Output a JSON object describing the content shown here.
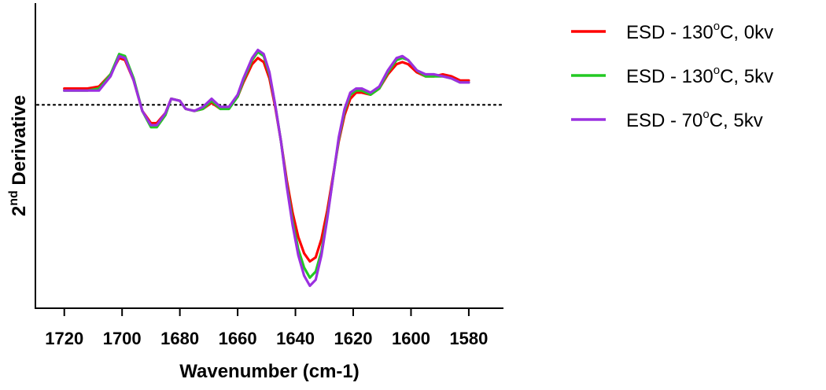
{
  "chart_data": {
    "type": "line",
    "title": "",
    "xlabel": "Wavenumber (cm-1)",
    "ylabel": {
      "base": "2",
      "sup": "nd",
      "rest": " Derivative"
    },
    "x_reversed": true,
    "xlim": [
      1730,
      1568
    ],
    "ylim": [
      -1.0,
      0.5
    ],
    "x_ticks": [
      1720,
      1700,
      1680,
      1660,
      1640,
      1620,
      1600,
      1580
    ],
    "y_ticks_shown": false,
    "baseline_y": 0,
    "grid": false,
    "legend_position": "right",
    "series": [
      {
        "legend": {
          "prefix": "ESD - 130",
          "sup": "o",
          "suffix": "C, 0kv"
        },
        "color": "#ff0000",
        "x": [
          1720,
          1716,
          1712,
          1708,
          1704,
          1701,
          1699,
          1696,
          1693,
          1690,
          1688,
          1685,
          1683,
          1680,
          1678,
          1675,
          1672,
          1669,
          1666,
          1663,
          1660,
          1658,
          1655,
          1653,
          1651,
          1649,
          1647,
          1645,
          1643,
          1641,
          1639,
          1637,
          1635,
          1633,
          1631,
          1629,
          1627,
          1625,
          1623,
          1621,
          1619,
          1617,
          1614,
          1611,
          1608,
          1605,
          1603,
          1601,
          1598,
          1595,
          1592,
          1589,
          1586,
          1583,
          1580
        ],
        "y": [
          0.08,
          0.08,
          0.08,
          0.09,
          0.15,
          0.23,
          0.22,
          0.12,
          -0.03,
          -0.09,
          -0.09,
          -0.04,
          0.03,
          0.02,
          -0.02,
          -0.03,
          -0.02,
          0.01,
          -0.02,
          -0.01,
          0.04,
          0.11,
          0.2,
          0.23,
          0.21,
          0.13,
          -0.01,
          -0.18,
          -0.37,
          -0.53,
          -0.65,
          -0.73,
          -0.77,
          -0.75,
          -0.66,
          -0.52,
          -0.35,
          -0.18,
          -0.05,
          0.03,
          0.06,
          0.06,
          0.05,
          0.08,
          0.15,
          0.2,
          0.21,
          0.2,
          0.16,
          0.14,
          0.14,
          0.15,
          0.14,
          0.12,
          0.12
        ]
      },
      {
        "legend": {
          "prefix": "ESD - 130",
          "sup": "o",
          "suffix": "C, 5kv"
        },
        "color": "#22c922",
        "x": [
          1720,
          1716,
          1712,
          1708,
          1704,
          1701,
          1699,
          1696,
          1693,
          1690,
          1688,
          1685,
          1683,
          1680,
          1678,
          1675,
          1672,
          1669,
          1666,
          1663,
          1660,
          1658,
          1655,
          1653,
          1651,
          1649,
          1647,
          1645,
          1643,
          1641,
          1639,
          1637,
          1635,
          1633,
          1631,
          1629,
          1627,
          1625,
          1623,
          1621,
          1619,
          1617,
          1614,
          1611,
          1608,
          1605,
          1603,
          1601,
          1598,
          1595,
          1592,
          1589,
          1586,
          1583,
          1580
        ],
        "y": [
          0.07,
          0.07,
          0.07,
          0.08,
          0.15,
          0.25,
          0.24,
          0.13,
          -0.03,
          -0.11,
          -0.11,
          -0.05,
          0.03,
          0.02,
          -0.02,
          -0.03,
          -0.02,
          0.02,
          -0.02,
          -0.02,
          0.04,
          0.12,
          0.22,
          0.26,
          0.24,
          0.15,
          0.0,
          -0.18,
          -0.39,
          -0.57,
          -0.71,
          -0.8,
          -0.85,
          -0.82,
          -0.72,
          -0.55,
          -0.36,
          -0.17,
          -0.03,
          0.05,
          0.07,
          0.07,
          0.05,
          0.08,
          0.16,
          0.22,
          0.23,
          0.22,
          0.17,
          0.14,
          0.14,
          0.14,
          0.13,
          0.11,
          0.11
        ]
      },
      {
        "legend": {
          "prefix": "ESD - 70",
          "sup": "o",
          "suffix": "C, 5kv"
        },
        "color": "#9b30e0",
        "x": [
          1720,
          1716,
          1712,
          1708,
          1704,
          1701,
          1699,
          1696,
          1693,
          1690,
          1688,
          1685,
          1683,
          1680,
          1678,
          1675,
          1672,
          1669,
          1666,
          1663,
          1660,
          1658,
          1655,
          1653,
          1651,
          1649,
          1647,
          1645,
          1643,
          1641,
          1639,
          1637,
          1635,
          1633,
          1631,
          1629,
          1627,
          1625,
          1623,
          1621,
          1619,
          1617,
          1614,
          1611,
          1608,
          1605,
          1603,
          1601,
          1598,
          1595,
          1592,
          1589,
          1586,
          1583,
          1580
        ],
        "y": [
          0.07,
          0.07,
          0.07,
          0.07,
          0.14,
          0.24,
          0.23,
          0.12,
          -0.03,
          -0.1,
          -0.1,
          -0.04,
          0.03,
          0.02,
          -0.02,
          -0.03,
          -0.01,
          0.03,
          -0.01,
          -0.01,
          0.05,
          0.13,
          0.23,
          0.27,
          0.25,
          0.16,
          0.0,
          -0.18,
          -0.4,
          -0.59,
          -0.74,
          -0.84,
          -0.89,
          -0.86,
          -0.74,
          -0.56,
          -0.36,
          -0.16,
          -0.02,
          0.06,
          0.08,
          0.08,
          0.06,
          0.09,
          0.17,
          0.23,
          0.24,
          0.22,
          0.17,
          0.15,
          0.15,
          0.14,
          0.13,
          0.11,
          0.11
        ]
      }
    ]
  }
}
